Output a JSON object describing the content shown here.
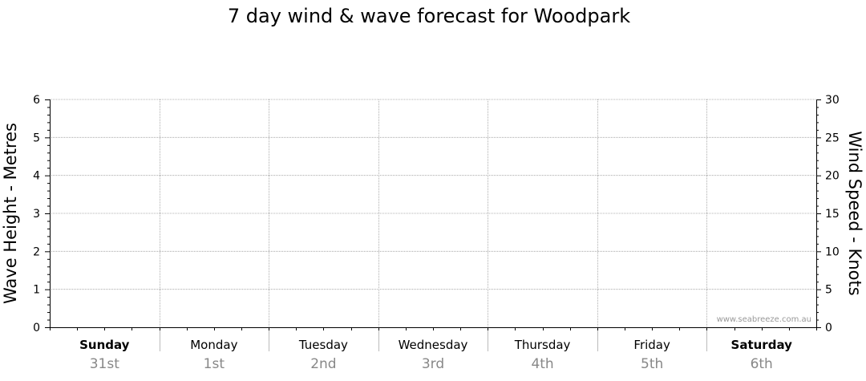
{
  "chart_data": {
    "type": "line",
    "title": "7 day wind & wave forecast for Woodpark",
    "watermark": "www.seabreeze.com.au",
    "grid": true,
    "days": [
      {
        "day": "Sunday",
        "date": "31st",
        "bold": true
      },
      {
        "day": "Monday",
        "date": "1st",
        "bold": false
      },
      {
        "day": "Tuesday",
        "date": "2nd",
        "bold": false
      },
      {
        "day": "Wednesday",
        "date": "3rd",
        "bold": false
      },
      {
        "day": "Thursday",
        "date": "4th",
        "bold": false
      },
      {
        "day": "Friday",
        "date": "5th",
        "bold": false
      },
      {
        "day": "Saturday",
        "date": "6th",
        "bold": true
      }
    ],
    "y_left": {
      "label": "Wave Height - Metres",
      "range": [
        0,
        6
      ],
      "ticks": [
        "0",
        "1",
        "2",
        "3",
        "4",
        "5",
        "6"
      ]
    },
    "y_right": {
      "label": "Wind Speed - Knots",
      "range": [
        0,
        30
      ],
      "ticks": [
        "0",
        "5",
        "10",
        "15",
        "20",
        "25",
        "30"
      ]
    },
    "series": []
  }
}
